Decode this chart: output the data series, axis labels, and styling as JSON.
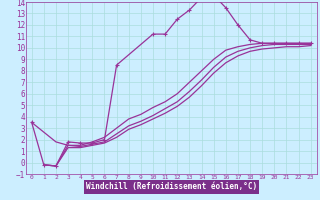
{
  "background_color": "#cceeff",
  "grid_color": "#aadddd",
  "line_color": "#993399",
  "xlabel": "Windchill (Refroidissement éolien,°C)",
  "xlim": [
    -0.5,
    23.5
  ],
  "ylim": [
    -1,
    14
  ],
  "xticks": [
    0,
    1,
    2,
    3,
    4,
    5,
    6,
    7,
    8,
    9,
    10,
    11,
    12,
    13,
    14,
    15,
    16,
    17,
    18,
    19,
    20,
    21,
    22,
    23
  ],
  "yticks": [
    -1,
    0,
    1,
    2,
    3,
    4,
    5,
    6,
    7,
    8,
    9,
    10,
    11,
    12,
    13,
    14
  ],
  "curve1_x": [
    0,
    1,
    2,
    3,
    4,
    5,
    6,
    7,
    10,
    11,
    12,
    13,
    14,
    15,
    16,
    17,
    18,
    19,
    20,
    21,
    22,
    23
  ],
  "curve1_y": [
    3.5,
    -0.2,
    -0.3,
    1.8,
    1.7,
    1.7,
    2.0,
    8.5,
    11.2,
    11.2,
    12.5,
    13.3,
    14.4,
    14.6,
    13.5,
    12.0,
    10.7,
    10.4,
    10.4,
    10.4,
    10.4,
    10.4
  ],
  "curve2_x": [
    0,
    2,
    3,
    4,
    5,
    6,
    7,
    8,
    9,
    10,
    11,
    12,
    13,
    14,
    15,
    16,
    17,
    18,
    19,
    20,
    21,
    22,
    23
  ],
  "curve2_y": [
    3.5,
    1.8,
    1.5,
    1.5,
    1.8,
    2.2,
    3.0,
    3.8,
    4.2,
    4.8,
    5.3,
    6.0,
    7.0,
    8.0,
    9.0,
    9.8,
    10.1,
    10.3,
    10.4,
    10.4,
    10.4,
    10.4,
    10.4
  ],
  "curve3_x": [
    1,
    2,
    3,
    4,
    5,
    6,
    7,
    8,
    9,
    10,
    11,
    12,
    13,
    14,
    15,
    16,
    17,
    18,
    19,
    20,
    21,
    22,
    23
  ],
  "curve3_y": [
    -0.2,
    -0.3,
    1.5,
    1.4,
    1.6,
    1.8,
    2.5,
    3.2,
    3.6,
    4.1,
    4.7,
    5.3,
    6.2,
    7.2,
    8.3,
    9.2,
    9.7,
    10.0,
    10.2,
    10.3,
    10.3,
    10.3,
    10.3
  ],
  "curve4_x": [
    1,
    2,
    3,
    4,
    5,
    6,
    7,
    8,
    9,
    10,
    11,
    12,
    13,
    14,
    15,
    16,
    17,
    18,
    19,
    20,
    21,
    22,
    23
  ],
  "curve4_y": [
    -0.2,
    -0.3,
    1.3,
    1.3,
    1.5,
    1.7,
    2.2,
    2.9,
    3.3,
    3.8,
    4.3,
    4.9,
    5.7,
    6.7,
    7.8,
    8.7,
    9.3,
    9.7,
    9.9,
    10.0,
    10.1,
    10.1,
    10.2
  ],
  "xlabel_bg": "#7b2f8a",
  "xlabel_fg": "#ffffff",
  "xlabel_fontsize": 5.5,
  "ytick_fontsize": 5.5,
  "xtick_fontsize": 4.5
}
